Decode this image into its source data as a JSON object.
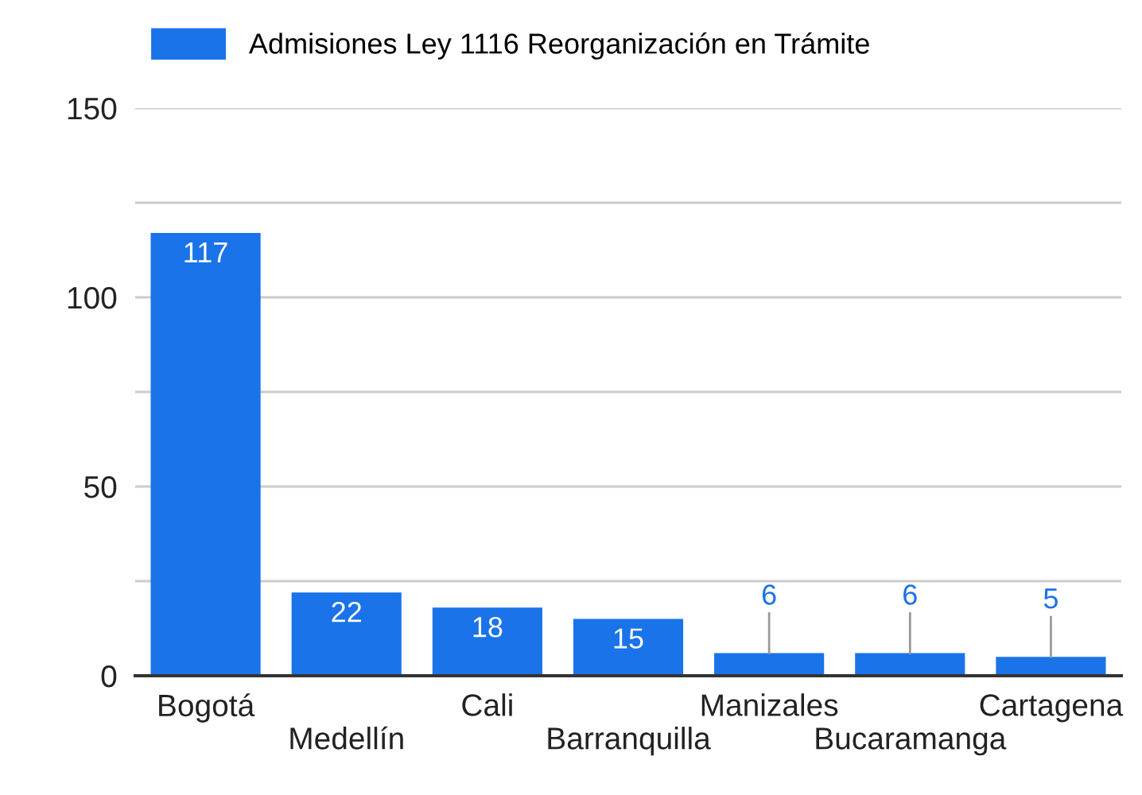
{
  "chart_data": {
    "type": "bar",
    "categories": [
      "Bogotá",
      "Medellín",
      "Cali",
      "Barranquilla",
      "Manizales",
      "Bucaramanga",
      "Cartagena"
    ],
    "series": [
      {
        "name": "Admisiones Ley 1116 Reorganización en Trámite",
        "color": "#1a73e8",
        "values": [
          117,
          22,
          18,
          15,
          6,
          6,
          5
        ]
      }
    ],
    "ylim": [
      0,
      150
    ],
    "yticks": [
      0,
      {
        "value": 25,
        "label": null
      },
      50,
      {
        "value": 75,
        "label": null
      },
      100,
      {
        "value": 125,
        "label": null
      },
      150
    ],
    "grid": "y",
    "legend": "top left",
    "data_labels": true
  }
}
